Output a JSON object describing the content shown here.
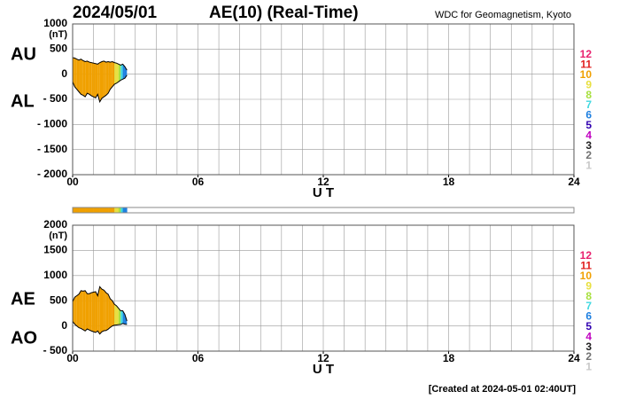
{
  "header": {
    "date": "2024/05/01",
    "title": "AE(10) (Real-Time)",
    "source": "WDC for Geomagnetism, Kyoto"
  },
  "footer": "[Created at 2024-05-01 02:40UT]",
  "legend": {
    "values": [
      12,
      11,
      10,
      9,
      8,
      7,
      6,
      5,
      4,
      3,
      2,
      1
    ],
    "colors": [
      "#e8206e",
      "#e02020",
      "#f0a000",
      "#e8e040",
      "#a8e040",
      "#40d8e0",
      "#2080e0",
      "#3000b0",
      "#c000c0",
      "#202020",
      "#707070",
      "#c8c8c8"
    ]
  },
  "stations": [
    10,
    10,
    10,
    10,
    10,
    10,
    10,
    10,
    10,
    10,
    10,
    10,
    10,
    10,
    10,
    10,
    10,
    10,
    10,
    10,
    9,
    9,
    8,
    7,
    6,
    6,
    5
  ],
  "chart_data": [
    {
      "type": "area",
      "ylabel": "(nT)",
      "xlabel": "U T",
      "x": [
        0,
        0.1,
        0.2,
        0.3,
        0.4,
        0.5,
        0.6,
        0.7,
        0.8,
        0.9,
        1.0,
        1.1,
        1.2,
        1.3,
        1.4,
        1.5,
        1.6,
        1.7,
        1.8,
        1.9,
        2.0,
        2.1,
        2.2,
        2.3,
        2.4,
        2.5,
        2.6
      ],
      "series": [
        {
          "name": "AU",
          "values": [
            330,
            320,
            300,
            280,
            300,
            270,
            250,
            260,
            240,
            230,
            220,
            210,
            200,
            230,
            250,
            260,
            240,
            250,
            240,
            250,
            230,
            220,
            200,
            180,
            200,
            150,
            80
          ]
        },
        {
          "name": "AL",
          "values": [
            -150,
            -250,
            -300,
            -350,
            -400,
            -420,
            -450,
            -380,
            -400,
            -430,
            -450,
            -470,
            -400,
            -550,
            -480,
            -450,
            -420,
            -380,
            -300,
            -250,
            -200,
            -180,
            -150,
            -120,
            -100,
            -80,
            -20
          ]
        }
      ],
      "xlim": [
        0,
        24
      ],
      "xticks": [
        {
          "value": 0,
          "label": "00"
        },
        {
          "value": 6,
          "label": "06"
        },
        12,
        18,
        24
      ],
      "xgrid_step": 1,
      "ylim": [
        -2000,
        1000
      ],
      "yticks": [
        {
          "value": -2000,
          "label": "- 2000"
        },
        {
          "value": -1500,
          "label": "- 1500"
        },
        {
          "value": -1000,
          "label": "- 1000"
        },
        {
          "value": -500,
          "label": "- 500"
        },
        0,
        500,
        1000
      ]
    },
    {
      "type": "area",
      "ylabel": "(nT)",
      "xlabel": "U T",
      "x": [
        0,
        0.1,
        0.2,
        0.3,
        0.4,
        0.5,
        0.6,
        0.7,
        0.8,
        0.9,
        1.0,
        1.1,
        1.2,
        1.3,
        1.4,
        1.5,
        1.6,
        1.7,
        1.8,
        1.9,
        2.0,
        2.1,
        2.2,
        2.3,
        2.4,
        2.5,
        2.6
      ],
      "series": [
        {
          "name": "AE",
          "values": [
            480,
            570,
            600,
            630,
            700,
            690,
            700,
            640,
            640,
            660,
            670,
            680,
            600,
            780,
            730,
            710,
            660,
            630,
            540,
            500,
            430,
            400,
            350,
            300,
            300,
            230,
            100
          ]
        },
        {
          "name": "AO",
          "values": [
            90,
            35,
            0,
            -35,
            -50,
            -75,
            -100,
            -60,
            -80,
            -100,
            -115,
            -130,
            -100,
            -160,
            -115,
            -95,
            -90,
            -65,
            -30,
            0,
            15,
            20,
            25,
            30,
            50,
            35,
            30
          ]
        }
      ],
      "xlim": [
        0,
        24
      ],
      "xticks": [
        {
          "value": 0,
          "label": "00"
        },
        {
          "value": 6,
          "label": "06"
        },
        12,
        18,
        24
      ],
      "xgrid_step": 1,
      "ylim": [
        -500,
        2000
      ],
      "yticks": [
        {
          "value": -500,
          "label": "- 500"
        },
        0,
        500,
        1000,
        1500,
        2000
      ]
    }
  ]
}
